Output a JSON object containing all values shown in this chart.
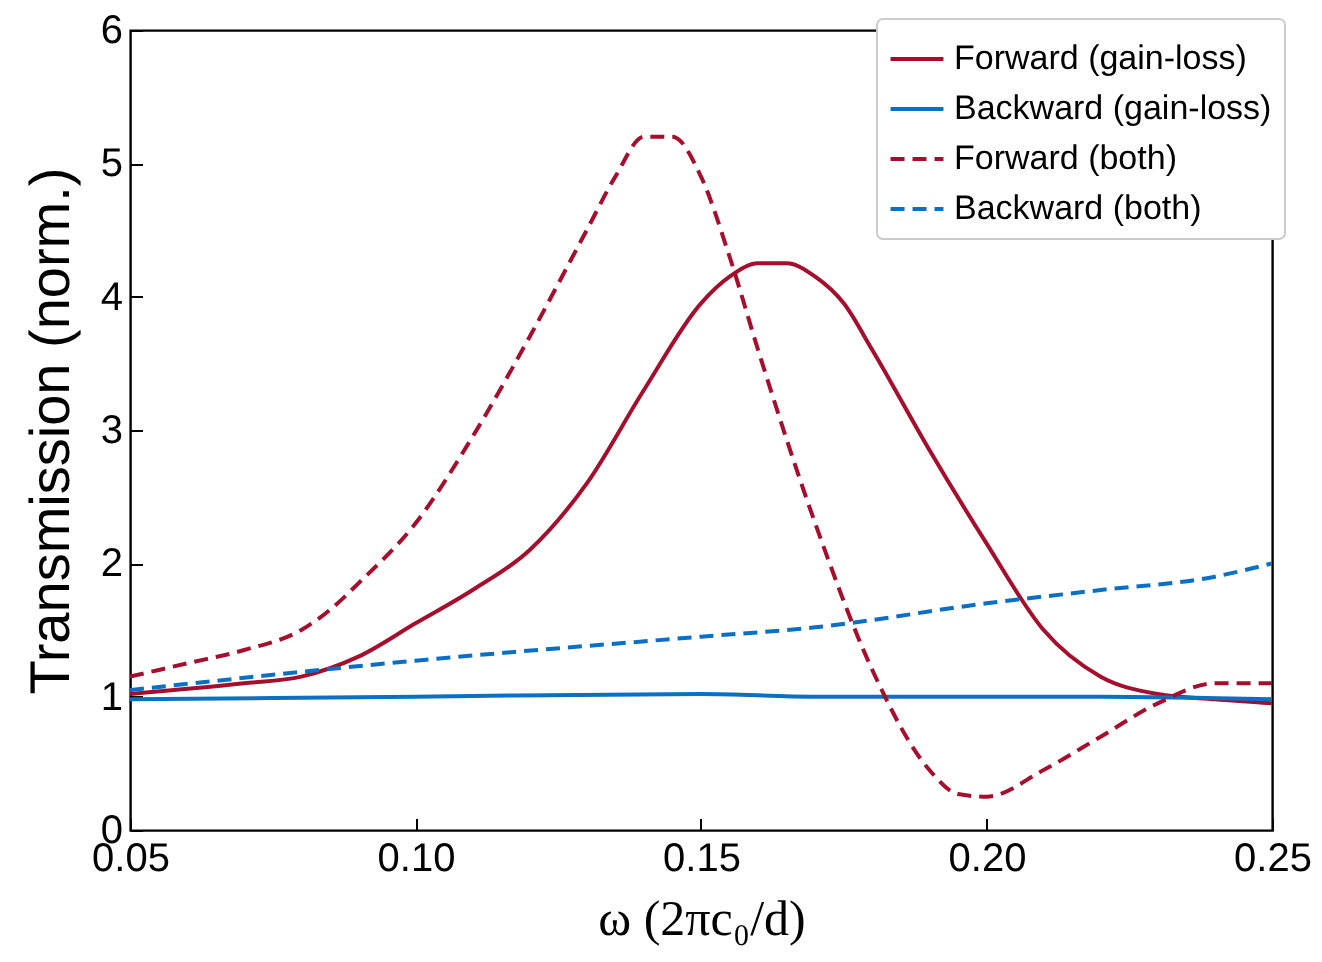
{
  "chart_data": {
    "type": "line",
    "xlabel": "ω (2πc₀/d)",
    "ylabel": "Transmission (norm.)",
    "xlim": [
      0.05,
      0.25
    ],
    "xticks": [
      0.05,
      {
        "value": 0.1,
        "label": "0.10"
      },
      0.15,
      {
        "value": 0.2,
        "label": "0.20"
      },
      0.25
    ],
    "ylim": [
      0,
      6
    ],
    "yticks": [
      0,
      1,
      2,
      3,
      4,
      5,
      6
    ],
    "grid": false,
    "legend": "top right",
    "marker": "none",
    "series": [
      {
        "name": "Forward (gain-loss)",
        "color": "#a50f2d",
        "line_style": "solid",
        "x": [
          0.05,
          0.07,
          0.08,
          0.09,
          0.1,
          0.11,
          0.12,
          0.13,
          0.14,
          0.15,
          0.155,
          0.16,
          0.165,
          0.17,
          0.175,
          0.18,
          0.19,
          0.2,
          0.21,
          0.22,
          0.23,
          0.24,
          0.25
        ],
        "values": [
          1.02,
          1.1,
          1.15,
          1.3,
          1.55,
          1.8,
          2.1,
          2.6,
          3.3,
          3.95,
          4.15,
          4.25,
          4.25,
          4.15,
          3.95,
          3.6,
          2.85,
          2.15,
          1.5,
          1.15,
          1.02,
          0.98,
          0.95
        ]
      },
      {
        "name": "Backward (gain-loss)",
        "color": "#0b6fc4",
        "line_style": "solid",
        "x": [
          0.05,
          0.1,
          0.15,
          0.17,
          0.22,
          0.25
        ],
        "values": [
          0.98,
          1.0,
          1.02,
          1.0,
          1.0,
          0.98
        ]
      },
      {
        "name": "Forward (both)",
        "color": "#a50f2d",
        "line_style": "dashed",
        "x": [
          0.05,
          0.06,
          0.07,
          0.08,
          0.085,
          0.09,
          0.1,
          0.11,
          0.12,
          0.13,
          0.135,
          0.14,
          0.145,
          0.15,
          0.155,
          0.16,
          0.17,
          0.18,
          0.19,
          0.195,
          0.2,
          0.21,
          0.22,
          0.23,
          0.24,
          0.25
        ],
        "values": [
          1.15,
          1.25,
          1.35,
          1.5,
          1.65,
          1.85,
          2.3,
          2.95,
          3.7,
          4.5,
          4.9,
          5.2,
          5.2,
          4.9,
          4.3,
          3.6,
          2.3,
          1.2,
          0.45,
          0.27,
          0.25,
          0.45,
          0.7,
          0.95,
          1.1,
          1.1
        ]
      },
      {
        "name": "Backward (both)",
        "color": "#0b6fc4",
        "line_style": "dashed",
        "x": [
          0.05,
          0.1,
          0.15,
          0.17,
          0.2,
          0.22,
          0.24,
          0.25
        ],
        "values": [
          1.05,
          1.27,
          1.45,
          1.52,
          1.7,
          1.8,
          1.9,
          2.0
        ]
      }
    ]
  }
}
